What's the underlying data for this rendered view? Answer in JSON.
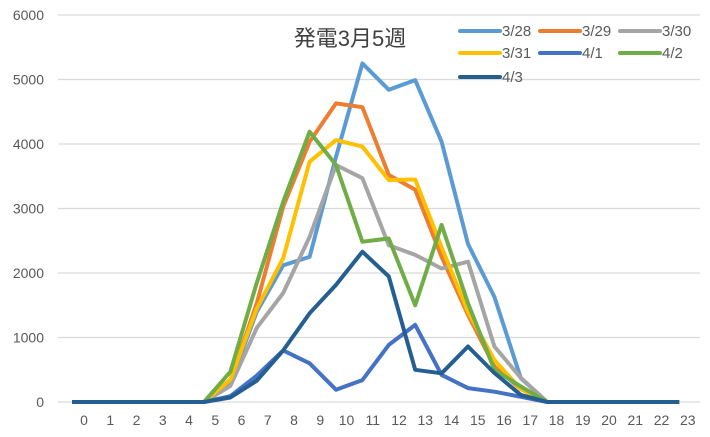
{
  "chart_data": {
    "type": "line",
    "title": "発電3月5週",
    "xlabel": "",
    "ylabel": "",
    "ylim": [
      0,
      6000
    ],
    "yticks": [
      0,
      1000,
      2000,
      3000,
      4000,
      5000,
      6000
    ],
    "grid": true,
    "legend_position": "top-right",
    "categories": [
      "0",
      "1",
      "2",
      "3",
      "4",
      "5",
      "6",
      "7",
      "8",
      "9",
      "10",
      "11",
      "12",
      "13",
      "14",
      "15",
      "16",
      "17",
      "18",
      "19",
      "20",
      "21",
      "22",
      "23"
    ],
    "series": [
      {
        "name": "3/28",
        "color": "#5B9BD5",
        "values": [
          0,
          0,
          0,
          0,
          0,
          0,
          300,
          1400,
          2120,
          2250,
          3800,
          5250,
          4840,
          4990,
          4035,
          2450,
          1630,
          370,
          0,
          0,
          0,
          0,
          0,
          0
        ]
      },
      {
        "name": "3/29",
        "color": "#ED7D31",
        "values": [
          0,
          0,
          0,
          0,
          0,
          0,
          340,
          1530,
          3030,
          4035,
          4630,
          4570,
          3520,
          3290,
          2250,
          1350,
          550,
          200,
          0,
          0,
          0,
          0,
          0,
          0
        ]
      },
      {
        "name": "3/30",
        "color": "#A5A5A5",
        "values": [
          0,
          0,
          0,
          0,
          0,
          0,
          250,
          1150,
          1690,
          2560,
          3675,
          3470,
          2430,
          2280,
          2070,
          2175,
          860,
          375,
          0,
          0,
          0,
          0,
          0,
          0
        ]
      },
      {
        "name": "3/31",
        "color": "#FFC000",
        "values": [
          0,
          0,
          0,
          0,
          0,
          0,
          350,
          1450,
          2230,
          3725,
          4060,
          3960,
          3440,
          3450,
          2400,
          1400,
          650,
          200,
          0,
          0,
          0,
          0,
          0,
          0
        ]
      },
      {
        "name": "4/1",
        "color": "#4472C4",
        "values": [
          0,
          0,
          0,
          0,
          0,
          0,
          90,
          410,
          800,
          600,
          190,
          340,
          885,
          1195,
          420,
          215,
          160,
          80,
          0,
          0,
          0,
          0,
          0,
          0
        ]
      },
      {
        "name": "4/2",
        "color": "#70AD47",
        "values": [
          0,
          0,
          0,
          0,
          0,
          0,
          470,
          1850,
          3105,
          4190,
          3675,
          2485,
          2535,
          1500,
          2745,
          1530,
          500,
          240,
          0,
          0,
          0,
          0,
          0,
          0
        ]
      },
      {
        "name": "4/3",
        "color": "#255E91",
        "values": [
          0,
          0,
          0,
          0,
          0,
          0,
          70,
          330,
          800,
          1375,
          1815,
          2330,
          1945,
          500,
          445,
          860,
          450,
          110,
          0,
          0,
          0,
          0,
          0,
          0
        ]
      }
    ]
  }
}
